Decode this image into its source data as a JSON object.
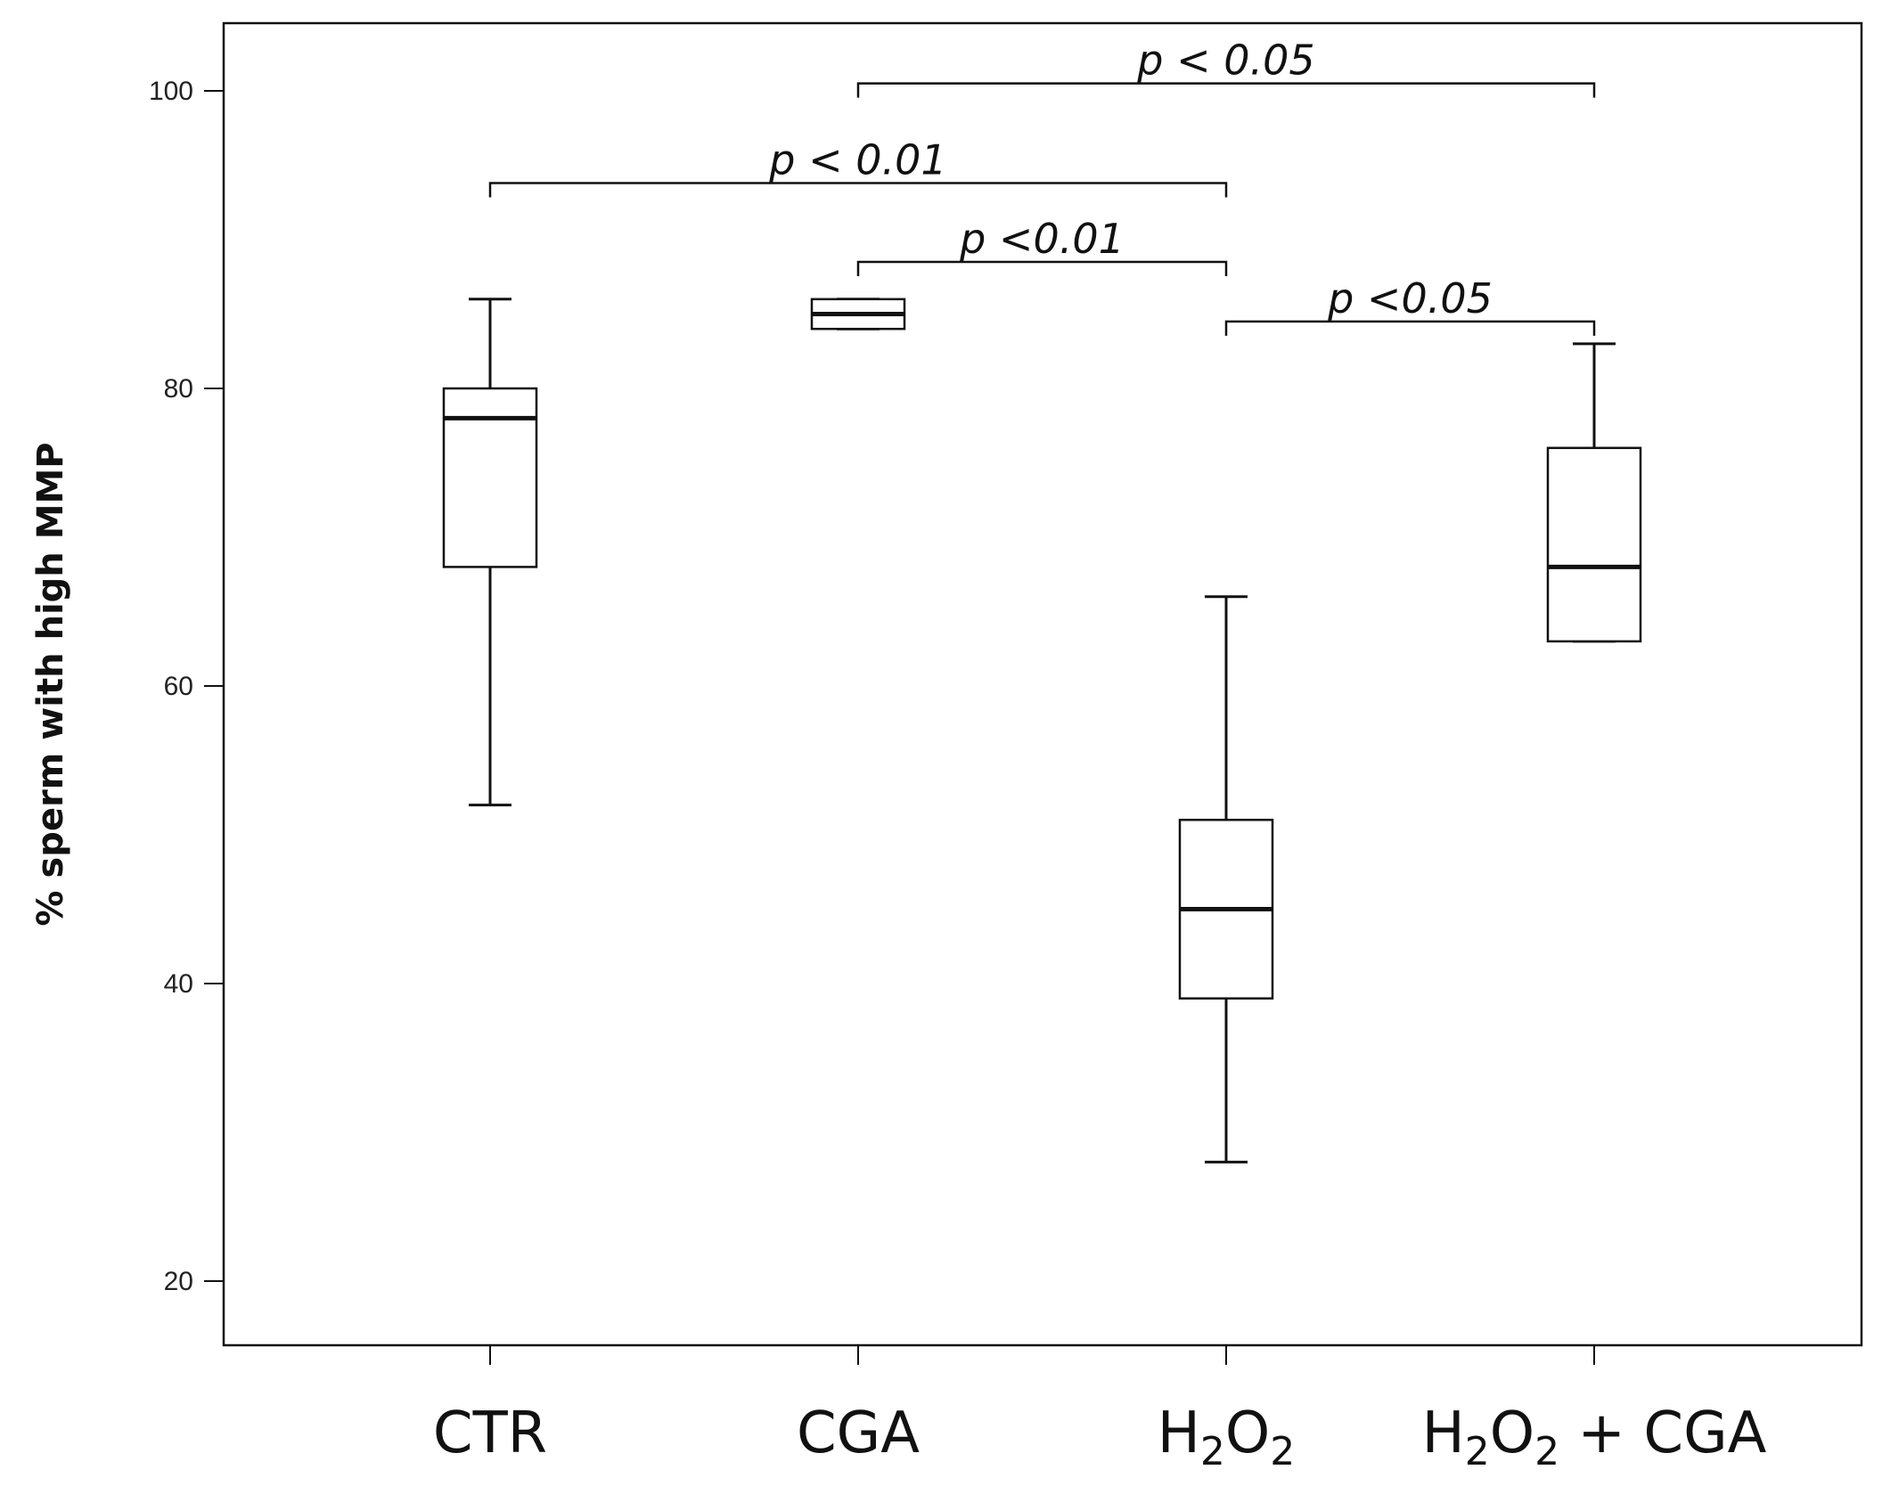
{
  "chart_data": {
    "type": "boxplot",
    "ylabel": "% sperm with high MMP",
    "xlabel": "",
    "ylim": [
      15,
      104
    ],
    "yticks": [
      20,
      40,
      60,
      80,
      100
    ],
    "grid": false,
    "categories": [
      {
        "id": "ctr",
        "label": "CTR"
      },
      {
        "id": "cga",
        "label": "CGA"
      },
      {
        "id": "h2o2",
        "label": "H2O2",
        "parts": [
          {
            "t": "H",
            "sub": false
          },
          {
            "t": "2",
            "sub": true
          },
          {
            "t": "O",
            "sub": false
          },
          {
            "t": "2",
            "sub": true
          }
        ]
      },
      {
        "id": "h2o2-cga",
        "label": "H2O2 + CGA",
        "parts": [
          {
            "t": "H",
            "sub": false
          },
          {
            "t": "2",
            "sub": true
          },
          {
            "t": "O",
            "sub": false
          },
          {
            "t": "2",
            "sub": true
          },
          {
            "t": " + CGA",
            "sub": false
          }
        ]
      }
    ],
    "boxes": [
      {
        "category": "CTR",
        "min": 52,
        "q1": 68,
        "median": 78,
        "q3": 80,
        "max": 86
      },
      {
        "category": "CGA",
        "min": 84,
        "q1": 84,
        "median": 85,
        "q3": 86,
        "max": 86
      },
      {
        "category": "H2O2",
        "min": 28,
        "q1": 39,
        "median": 45,
        "q3": 51,
        "max": 66
      },
      {
        "category": "H2O2 + CGA",
        "min": 63,
        "q1": 63,
        "median": 68,
        "q3": 76,
        "max": 83
      }
    ],
    "significance": [
      {
        "from": "CGA",
        "to": "H2O2 + CGA",
        "y": 100.5,
        "label": "p < 0.05"
      },
      {
        "from": "CTR",
        "to": "H2O2",
        "y": 93.8,
        "label": "p < 0.01"
      },
      {
        "from": "CGA",
        "to": "H2O2",
        "y": 88.5,
        "label": "p <0.01"
      },
      {
        "from": "H2O2",
        "to": "H2O2 + CGA",
        "y": 84.5,
        "label": "p <0.05"
      }
    ]
  }
}
